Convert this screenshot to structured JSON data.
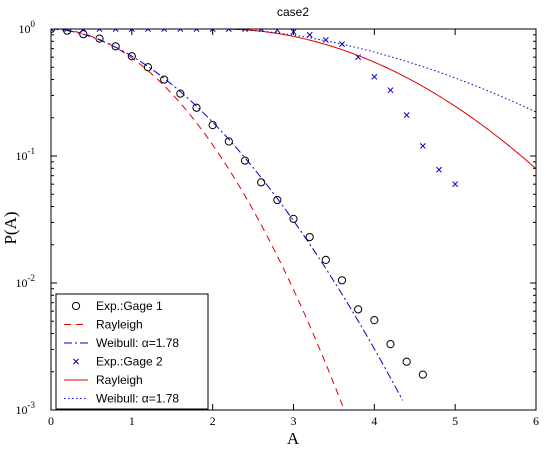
{
  "chart_data": {
    "type": "line",
    "title": "case2",
    "xlabel": "A",
    "ylabel": "P(A)",
    "xlim": [
      0,
      6
    ],
    "ylim": [
      0.001,
      1
    ],
    "yscale": "log",
    "x_ticks": [
      0,
      1,
      2,
      3,
      4,
      5,
      6
    ],
    "y_ticks": [
      {
        "value": 0.001,
        "base": "10",
        "exp": "-3"
      },
      {
        "value": 0.01,
        "base": "10",
        "exp": "-2"
      },
      {
        "value": 0.1,
        "base": "10",
        "exp": "-1"
      },
      {
        "value": 1,
        "base": "10",
        "exp": "0"
      }
    ],
    "grid": false,
    "legend_position": "bottom-left",
    "series": [
      {
        "name": "Exp.:Gage 1",
        "kind": "scatter",
        "marker": "circle",
        "color": "#000000",
        "x": [
          0.0,
          0.2,
          0.4,
          0.6,
          0.8,
          1.0,
          1.2,
          1.4,
          1.6,
          1.8,
          2.0,
          2.2,
          2.4,
          2.6,
          2.8,
          3.0,
          3.2,
          3.4,
          3.6,
          3.8,
          4.0,
          4.2,
          4.4,
          4.6
        ],
        "y": [
          1.0,
          0.97,
          0.91,
          0.84,
          0.73,
          0.61,
          0.5,
          0.4,
          0.31,
          0.24,
          0.175,
          0.13,
          0.092,
          0.062,
          0.045,
          0.032,
          0.023,
          0.0152,
          0.0105,
          0.0062,
          0.0051,
          0.0033,
          0.0024,
          0.0019
        ]
      },
      {
        "name": "Rayleigh",
        "kind": "line",
        "model": "rayleigh",
        "scale": 1.38,
        "x_range": [
          0,
          3.7
        ],
        "color": "#e00000",
        "dash": "7,5"
      },
      {
        "name": "Weibull: α=1.78",
        "kind": "line",
        "model": "weibull",
        "shape": 1.78,
        "scale": 1.49,
        "x_range": [
          0,
          4.35
        ],
        "color": "#0000c8",
        "dash": "8,3,2,3"
      },
      {
        "name": "Exp.:Gage 2",
        "kind": "scatter",
        "marker": "x",
        "color": "#0000c8",
        "x": [
          0.0,
          0.2,
          0.4,
          0.6,
          0.8,
          1.0,
          1.2,
          1.4,
          1.6,
          1.8,
          2.0,
          2.2,
          2.4,
          2.6,
          2.8,
          3.0,
          3.2,
          3.4,
          3.6,
          3.8,
          4.0,
          4.2,
          4.4,
          4.6,
          4.8,
          5.0
        ],
        "y": [
          1.0,
          1.0,
          1.0,
          1.0,
          1.0,
          1.0,
          1.0,
          1.0,
          1.0,
          1.0,
          1.0,
          1.0,
          1.0,
          1.0,
          0.98,
          0.95,
          0.9,
          0.82,
          0.76,
          0.6,
          0.42,
          0.33,
          0.21,
          0.12,
          0.078,
          0.06
        ]
      },
      {
        "name": "Rayleigh",
        "kind": "line",
        "model": "rayleigh",
        "scale": 2.45,
        "offset": 2.1,
        "x_range": [
          0,
          6
        ],
        "color": "#e00000",
        "dash": ""
      },
      {
        "name": "Weibull: α=1.78",
        "kind": "line",
        "model": "weibull",
        "shape": 1.78,
        "scale": 3.1,
        "offset": 2.1,
        "x_range": [
          0,
          6
        ],
        "color": "#0000c8",
        "dash": "1.5,2.5"
      }
    ]
  }
}
